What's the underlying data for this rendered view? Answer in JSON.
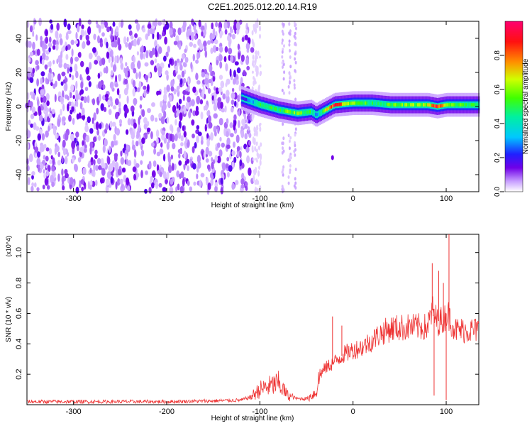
{
  "figure": {
    "title": "C2E1.2025.012.20.14.R19"
  },
  "chart_data": [
    {
      "type": "heatmap",
      "id": "spectrogram",
      "xlabel": "Height of straight line (km)",
      "ylabel": "Frequency (Hz)",
      "xlim": [
        -350,
        135
      ],
      "ylim": [
        -50,
        50
      ],
      "xticks": [
        -300,
        -200,
        -100,
        0,
        100
      ],
      "yticks": [
        -40,
        -20,
        0,
        20,
        40
      ],
      "colorbar": {
        "label": "Normalized spectral amplitude",
        "range": [
          0.0,
          1.0
        ],
        "ticks": [
          0.0,
          0.2,
          0.4,
          0.6,
          0.8
        ]
      },
      "features": {
        "noise_region_x": [
          -350,
          -108
        ],
        "noise_amplitude_range": [
          0.0,
          0.15
        ],
        "signal_trace": {
          "x": [
            -120,
            -110,
            -100,
            -80,
            -60,
            -45,
            -40,
            -30,
            -20,
            0,
            20,
            40,
            60,
            80,
            90,
            100,
            135
          ],
          "freq": [
            5,
            3,
            1,
            -2,
            -4,
            -3,
            -5,
            -2,
            1,
            2,
            2,
            1,
            1,
            1,
            0,
            1,
            1
          ],
          "peak_amplitude": [
            0.2,
            0.3,
            0.5,
            0.55,
            0.6,
            0.5,
            0.3,
            0.7,
            0.95,
            0.6,
            0.5,
            0.55,
            0.6,
            0.65,
            0.95,
            0.6,
            0.5
          ]
        },
        "spurious_lines_x": [
          -75,
          -68,
          -62
        ],
        "blob": {
          "x": -22,
          "freq": -30
        }
      }
    },
    {
      "type": "line",
      "id": "snr",
      "xlabel": "Height of straight line (km)",
      "ylabel": "SNR (10 * v/v)",
      "y_multiplier": "(x10^4)",
      "xlim": [
        -350,
        135
      ],
      "ylim": [
        0.0,
        1.12
      ],
      "xticks": [
        -300,
        -200,
        -100,
        0,
        100
      ],
      "yticks": [
        0.2,
        0.4,
        0.6,
        0.8,
        1.0
      ],
      "series": [
        {
          "name": "SNR",
          "color": "#ee3333",
          "x": [
            -350,
            -300,
            -250,
            -200,
            -150,
            -120,
            -110,
            -100,
            -90,
            -80,
            -70,
            -60,
            -50,
            -40,
            -35,
            -30,
            -20,
            -10,
            0,
            10,
            20,
            30,
            40,
            60,
            80,
            85,
            90,
            95,
            100,
            103,
            110,
            120,
            135
          ],
          "y": [
            0.02,
            0.02,
            0.02,
            0.02,
            0.025,
            0.03,
            0.05,
            0.1,
            0.12,
            0.14,
            0.06,
            0.04,
            0.04,
            0.08,
            0.2,
            0.24,
            0.28,
            0.33,
            0.36,
            0.38,
            0.42,
            0.47,
            0.5,
            0.51,
            0.51,
            0.62,
            0.55,
            0.55,
            0.6,
            0.58,
            0.49,
            0.49,
            0.49
          ]
        }
      ],
      "spikes": [
        {
          "x": -22,
          "y": 0.58
        },
        {
          "x": -12,
          "y": 0.52
        },
        {
          "x": 85,
          "y": 0.93
        },
        {
          "x": 87,
          "y": 0.06
        },
        {
          "x": 92,
          "y": 0.88
        },
        {
          "x": 97,
          "y": 0.8
        },
        {
          "x": 100,
          "y": 0.03
        },
        {
          "x": 103,
          "y": 1.12
        }
      ]
    }
  ]
}
